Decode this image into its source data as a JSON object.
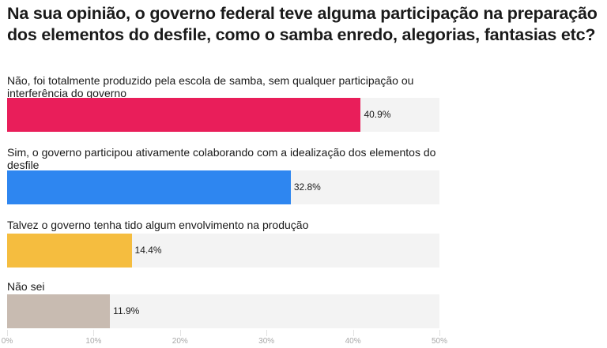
{
  "chart_data": {
    "type": "bar",
    "orientation": "horizontal",
    "title": "Na sua opinião, o governo federal teve alguma participação na preparação dos elementos do desfile, como o samba enredo, alegorias, fantasias etc?",
    "categories": [
      "Não, foi totalmente produzido pela escola de samba, sem qualquer participação ou interferência do governo",
      "Sim, o governo participou ativamente colaborando com a idealização dos elementos do desfile",
      "Talvez o governo tenha tido algum envolvimento na produção",
      "Não sei"
    ],
    "values": [
      40.9,
      32.8,
      14.4,
      11.9
    ],
    "value_labels": [
      "40.9%",
      "32.8%",
      "14.4%",
      "11.9%"
    ],
    "colors": [
      "#e91e5a",
      "#2e86f0",
      "#f5bd3f",
      "#c8bbb1"
    ],
    "xlim": [
      0,
      50
    ],
    "xticks": [
      0,
      10,
      20,
      30,
      40,
      50
    ],
    "xtick_labels": [
      "0%",
      "10%",
      "20%",
      "30%",
      "40%",
      "50%"
    ],
    "xlabel": "",
    "ylabel": ""
  }
}
